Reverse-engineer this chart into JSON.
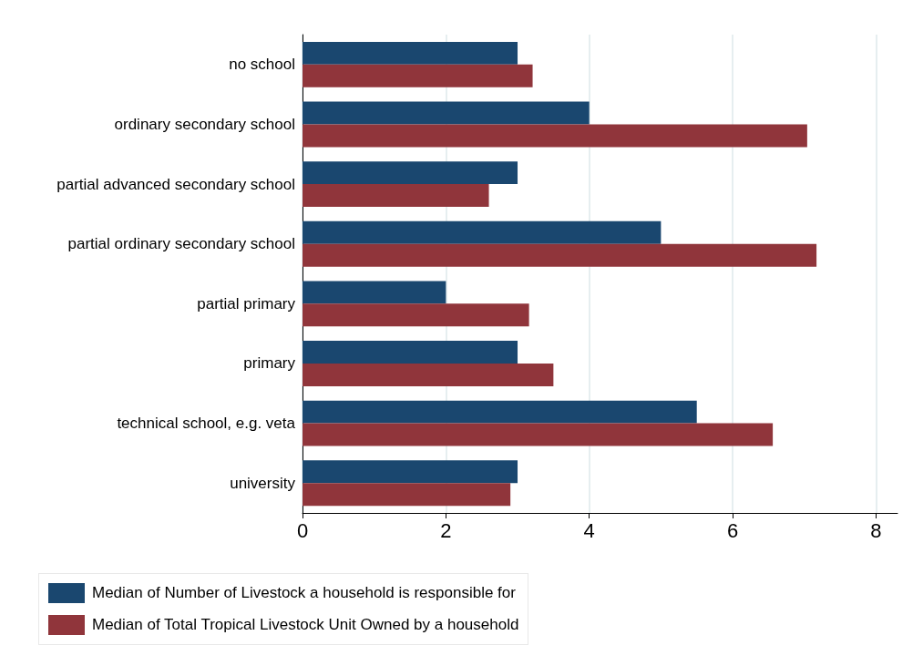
{
  "chart_data": {
    "type": "bar",
    "orientation": "horizontal",
    "categories": [
      "no school",
      "ordinary secondary school",
      "partial advanced secondary school",
      "partial ordinary secondary school",
      "partial primary",
      "primary",
      "technical school, e.g. veta",
      "university"
    ],
    "series": [
      {
        "name": "Median of Number of Livestock a household is responsible for",
        "color": "#1a476f",
        "values": [
          3,
          4,
          3,
          5,
          2,
          3,
          5.5,
          3
        ]
      },
      {
        "name": "Median of Total Tropical Livestock Unit Owned by a household",
        "color": "#90353b",
        "values": [
          3.21,
          7.04,
          2.6,
          7.17,
          3.16,
          3.5,
          6.56,
          2.9
        ]
      }
    ],
    "xlim": [
      0,
      8.3
    ],
    "xticks": [
      0,
      2,
      4,
      6,
      8
    ],
    "grid": "x",
    "legend": "bottom"
  }
}
